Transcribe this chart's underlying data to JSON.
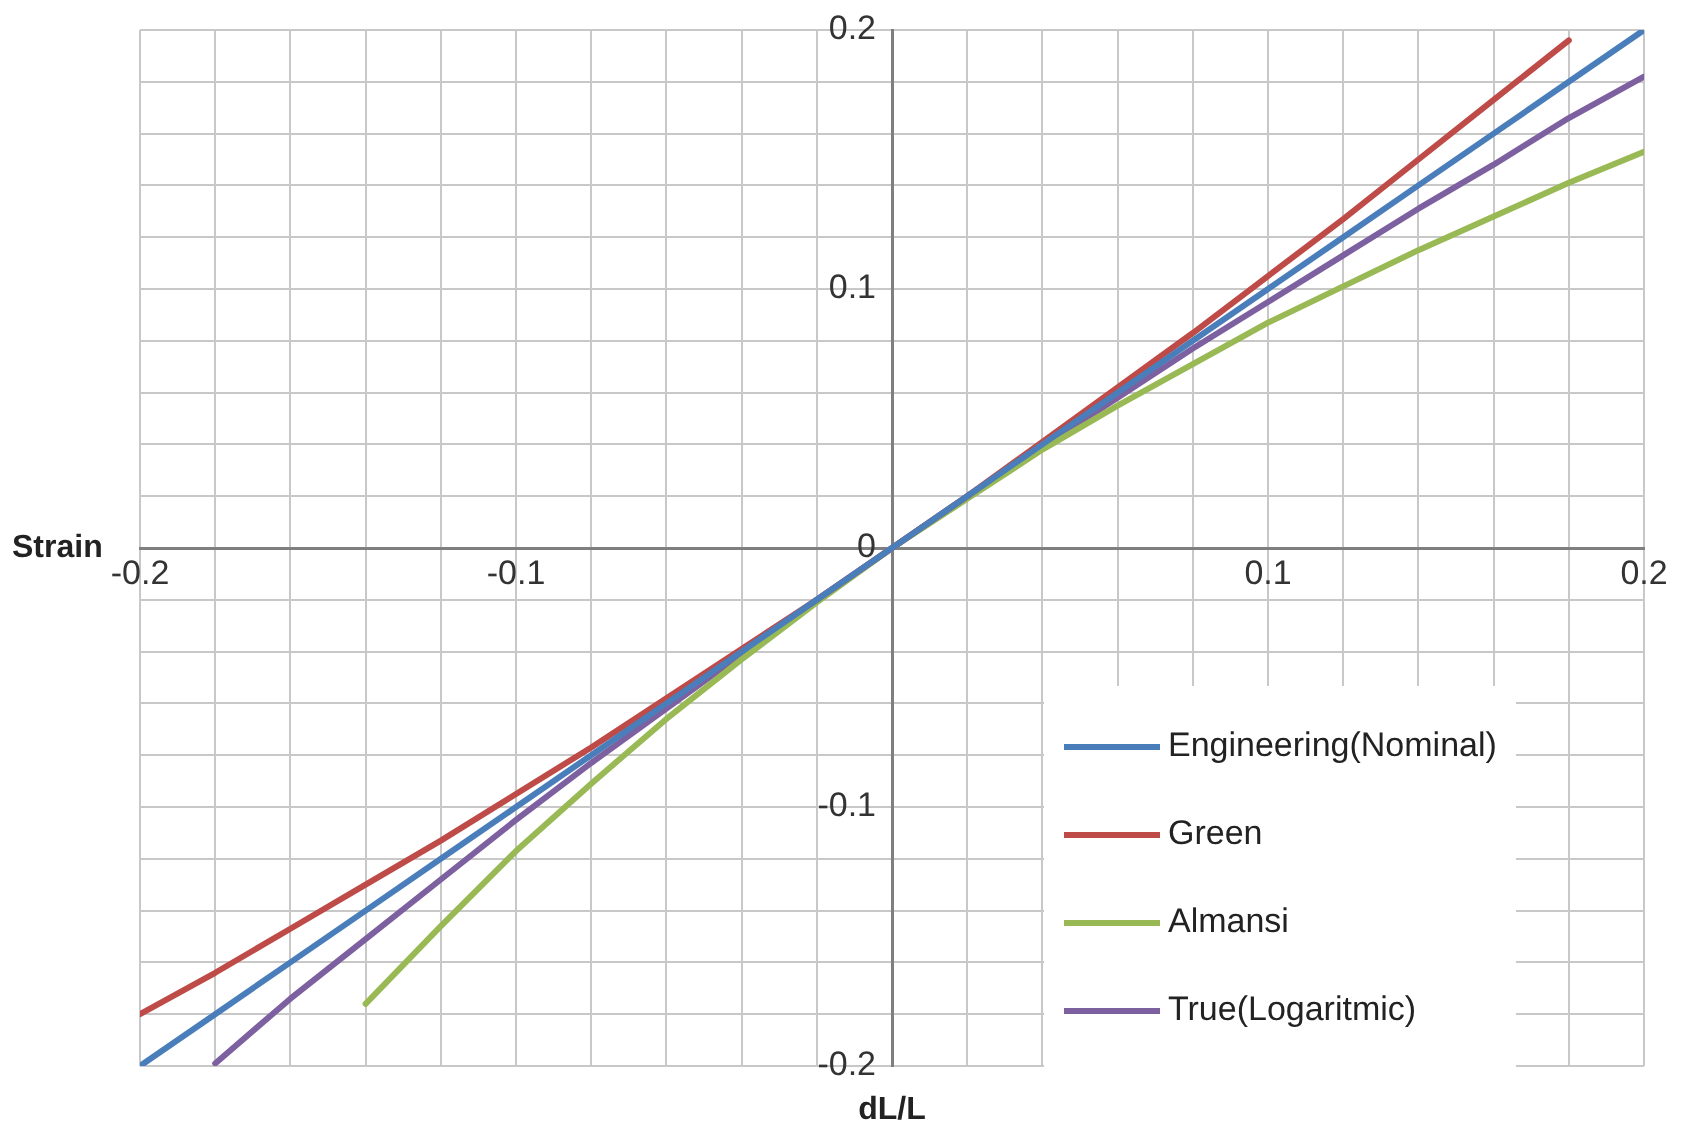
{
  "chart_data": {
    "type": "line",
    "xlabel": "dL/L",
    "ylabel": "Strain",
    "x": [
      -0.2,
      -0.18,
      -0.16,
      -0.14,
      -0.12,
      -0.1,
      -0.08,
      -0.06,
      -0.04,
      -0.02,
      0,
      0.02,
      0.04,
      0.06,
      0.08,
      0.1,
      0.12,
      0.14,
      0.16,
      0.18,
      0.2
    ],
    "series": [
      {
        "name": "Engineering(Nominal)",
        "color": "#4a7ebb",
        "values": [
          -0.2,
          -0.18,
          -0.16,
          -0.14,
          -0.12,
          -0.1,
          -0.08,
          -0.06,
          -0.04,
          -0.02,
          0,
          0.02,
          0.04,
          0.06,
          0.08,
          0.1,
          0.12,
          0.14,
          0.16,
          0.18,
          0.2
        ]
      },
      {
        "name": "Green",
        "color": "#be4b48",
        "values": [
          -0.18,
          -0.164,
          -0.147,
          -0.13,
          -0.113,
          -0.095,
          -0.077,
          -0.058,
          -0.039,
          -0.02,
          0,
          0.02,
          0.041,
          0.062,
          0.083,
          0.105,
          0.127,
          0.15,
          0.173,
          0.196,
          null
        ]
      },
      {
        "name": "Almansi",
        "color": "#98b954",
        "values": [
          null,
          null,
          null,
          -0.176,
          -0.146,
          -0.117,
          -0.091,
          -0.066,
          -0.043,
          -0.021,
          0,
          0.019,
          0.038,
          0.055,
          0.071,
          0.087,
          0.101,
          0.115,
          0.128,
          0.141,
          0.153
        ]
      },
      {
        "name": "True(Logaritmic)",
        "color": "#7d60a0",
        "values": [
          null,
          -0.199,
          -0.174,
          -0.151,
          -0.128,
          -0.105,
          -0.083,
          -0.062,
          -0.041,
          -0.02,
          0,
          0.02,
          0.039,
          0.058,
          0.077,
          0.095,
          0.113,
          0.131,
          0.148,
          0.166,
          0.182
        ]
      }
    ],
    "xlim": [
      -0.2,
      0.2
    ],
    "xticks": [
      -0.2,
      {
        "value": -0.18,
        "label": null
      },
      {
        "value": -0.16,
        "label": null
      },
      {
        "value": -0.14,
        "label": null
      },
      {
        "value": -0.12,
        "label": null
      },
      -0.1,
      {
        "value": -0.08,
        "label": null
      },
      {
        "value": -0.06,
        "label": null
      },
      {
        "value": -0.04,
        "label": null
      },
      {
        "value": -0.02,
        "label": null
      },
      {
        "value": 0,
        "label": null
      },
      {
        "value": 0.02,
        "label": null
      },
      {
        "value": 0.04,
        "label": null
      },
      {
        "value": 0.06,
        "label": null
      },
      {
        "value": 0.08,
        "label": null
      },
      0.1,
      {
        "value": 0.12,
        "label": null
      },
      {
        "value": 0.14,
        "label": null
      },
      {
        "value": 0.16,
        "label": null
      },
      {
        "value": 0.18,
        "label": null
      },
      0.2
    ],
    "ylim": [
      -0.2,
      0.2
    ],
    "yticks": [
      -0.2,
      {
        "value": -0.18,
        "label": null
      },
      {
        "value": -0.16,
        "label": null
      },
      {
        "value": -0.14,
        "label": null
      },
      {
        "value": -0.12,
        "label": null
      },
      -0.1,
      {
        "value": -0.08,
        "label": null
      },
      {
        "value": -0.06,
        "label": null
      },
      {
        "value": -0.04,
        "label": null
      },
      {
        "value": -0.02,
        "label": null
      },
      0,
      {
        "value": 0.02,
        "label": null
      },
      {
        "value": 0.04,
        "label": null
      },
      {
        "value": 0.06,
        "label": null
      },
      {
        "value": 0.08,
        "label": null
      },
      0.1,
      {
        "value": 0.12,
        "label": null
      },
      {
        "value": 0.14,
        "label": null
      },
      {
        "value": 0.16,
        "label": null
      },
      {
        "value": 0.18,
        "label": null
      },
      0.2
    ],
    "grid": true,
    "legend": "bottom right",
    "marker": "none",
    "line_style": "solid"
  }
}
